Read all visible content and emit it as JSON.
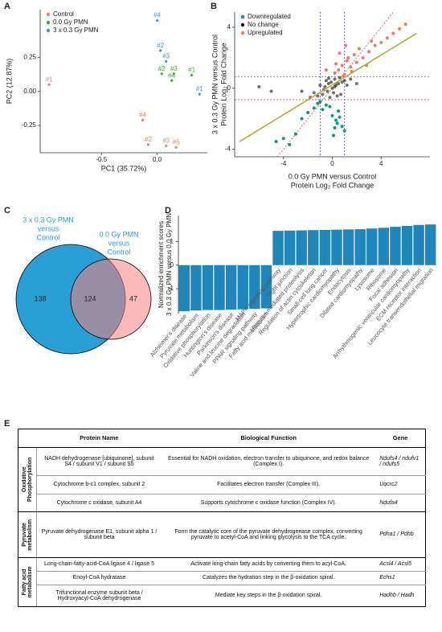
{
  "panel_labels": [
    "A",
    "B",
    "C",
    "D",
    "E"
  ],
  "chart_data": [
    {
      "type": "scatter",
      "x_label": "PC1 (35.72%)",
      "y_label": "PC2 (12.87%)",
      "xlim": [
        -1.05,
        0.45
      ],
      "ylim": [
        -0.45,
        0.6
      ],
      "xticks": [
        -0.5,
        {
          "value": 0,
          "label": "0.0"
        }
      ],
      "yticks": [
        0.25,
        {
          "value": 0,
          "label": "0.00"
        },
        -0.25
      ],
      "legend": "upper left",
      "series": [
        {
          "name": "Control",
          "color": "#f07b6f",
          "x": [
            -0.97,
            -0.13,
            -0.08,
            0.08,
            0.17
          ],
          "y": [
            0.05,
            -0.21,
            -0.39,
            -0.4,
            -0.41
          ],
          "labels": [
            "#1",
            "#4",
            "#2",
            "#3",
            "#5"
          ]
        },
        {
          "name": "0.0 Gy PMN",
          "color": "#2db52d",
          "x": [
            0.04,
            0.15,
            0.13,
            0.31
          ],
          "y": [
            0.13,
            0.13,
            0.08,
            0.12
          ],
          "labels": [
            "#2",
            "#3",
            "#4",
            "#1"
          ]
        },
        {
          "name": "3 x 0.3 Gy PMN",
          "color": "#4b8fe0",
          "x": [
            0.0,
            0.03,
            0.08,
            0.38
          ],
          "y": [
            0.52,
            0.3,
            0.22,
            -0.02
          ],
          "labels": [
            "#4",
            "#2",
            "#3",
            "#1"
          ]
        }
      ]
    },
    {
      "type": "scatter",
      "x_label": [
        "0.0 Gy PMN versus Control",
        "Protein Log₂ Fold Change"
      ],
      "y_label": [
        "3 x 0.3 Gy PMN versus Control",
        "Protein Log₂ Fold Change"
      ],
      "xlim": [
        -8,
        8
      ],
      "ylim": [
        -4.5,
        5
      ],
      "xticks": [
        -4,
        0,
        4
      ],
      "yticks": [
        4,
        0,
        -4
      ],
      "legend": "upper left",
      "vlines": [
        -1,
        1
      ],
      "vline_color": "#3b3bd6",
      "hlines": [
        -0.75,
        0.75
      ],
      "hline_color": "#e04545",
      "identity_line_color": "#e04545",
      "fit_line": {
        "x": [
          -7.6,
          6.9
        ],
        "y": [
          -3.5,
          3.6
        ],
        "color": "#b8a840"
      },
      "series": [
        {
          "name": "Downregulated",
          "color": "#12948a",
          "x": [
            -0.2,
            0,
            0.3,
            0.5,
            0.8,
            1,
            -0.5,
            -1,
            -1.5,
            -2,
            -2.5,
            -3,
            -4,
            -3.5,
            0.2,
            0.6,
            -0.8,
            -1.2,
            0.1,
            0.4,
            -4.6
          ],
          "y": [
            -1.2,
            -1.8,
            -2.1,
            -1.5,
            -2.5,
            -2.8,
            -1.1,
            -0.9,
            -1.3,
            -1.6,
            -2,
            -3,
            -3.3,
            -3.7,
            -2.6,
            -1.9,
            -1.4,
            -1,
            -3.1,
            -2.3,
            -3.5
          ]
        },
        {
          "name": "No change",
          "color": "#111111",
          "x": [
            -1.8,
            -1.5,
            -1.2,
            -1,
            -0.8,
            -0.6,
            -0.5,
            -0.4,
            -0.3,
            -0.2,
            -0.1,
            0,
            0.1,
            0.2,
            0.3,
            0.4,
            0.5,
            0.6,
            0.8,
            1,
            1.2,
            1.5,
            -0.7,
            0.7,
            -0.3,
            0.2,
            -2.5,
            2,
            -6,
            -5
          ],
          "y": [
            -0.6,
            -0.3,
            -0.5,
            0.2,
            -0.4,
            0.1,
            0.5,
            -0.2,
            0.3,
            -0.6,
            0.4,
            0,
            -0.3,
            0.6,
            0.2,
            -0.5,
            0.3,
            0.7,
            0.4,
            0.5,
            0.2,
            0.6,
            -0.1,
            -0.4,
            0.65,
            0.1,
            -0.2,
            0.3,
            0.1,
            -0.2
          ]
        },
        {
          "name": "Upregulated",
          "color": "#f07b5f",
          "x": [
            0.2,
            0.5,
            0.8,
            1,
            1.2,
            1.5,
            1.8,
            2,
            2.2,
            2.5,
            3,
            3.5,
            4,
            4.5,
            5,
            5.5,
            0.3,
            0.6,
            1.1,
            1.6,
            -0.5,
            2.8,
            3.2,
            6,
            0.9,
            1.3
          ],
          "y": [
            1,
            1.2,
            1.5,
            0.9,
            1.8,
            1.4,
            2.2,
            1.7,
            2.6,
            2,
            2.4,
            2.8,
            3,
            3.3,
            3.6,
            3.9,
            1.6,
            2.3,
            2.8,
            1.1,
            1.2,
            1.5,
            3.1,
            4.2,
            0.8,
            2
          ]
        }
      ]
    },
    {
      "type": "venn",
      "sets": [
        {
          "label_lines": [
            "3 x 0.3 Gy PMN",
            "versus",
            "Control"
          ],
          "color": "#2a9fd6"
        },
        {
          "label_lines": [
            "0.0 Gy PMN",
            "versus",
            "Control"
          ],
          "color": "#f4807e"
        }
      ],
      "only_first": 138,
      "both": 124,
      "only_second": 47
    },
    {
      "type": "bar",
      "y_label": [
        "Normalized enrichment scores",
        "3 x 0.3 Gy PMN versus 0.0 Gy PMN"
      ],
      "ylim": [
        -2.05,
        2.1
      ],
      "yticks": [
        1,
        0,
        -1
      ],
      "color": "#1f86bb",
      "categories": [
        "Alzheimer's disease",
        "Pyruvate metabolism",
        "Oxidative phosphorylation",
        "Huntington's disease",
        "Parkinson's disease",
        "Valine and leucine degradation",
        "PPAR signaling pathway",
        "Fatty acid metabolism",
        "MAPK signaling pathway",
        "Tight junction",
        "Ubiquitin-mediated proteolysis",
        "Regulation of actin cytoskeleton",
        "Small-cell lung cancer",
        "Hypertrophic cardiomyopathy",
        "Endocytosis",
        "Dilated cardiomyopathy",
        "Lysosome",
        "Ribosome",
        "Focal adhesion",
        "Arrhythmogenic ventricular cardiomyopathy",
        "ECM receptor interaction",
        "Leucocyte transendothelial migration"
      ],
      "values": [
        -1.95,
        -1.92,
        -1.9,
        -1.9,
        -1.88,
        -1.87,
        -1.85,
        -1.83,
        1.45,
        1.46,
        1.47,
        1.48,
        1.49,
        1.5,
        1.51,
        1.52,
        1.55,
        1.58,
        1.62,
        1.66,
        1.7,
        1.72
      ]
    }
  ],
  "table": {
    "headers": [
      "Protein Name",
      "Biological Function",
      "Gene"
    ],
    "groups": [
      {
        "label": "Oxidative Phosphorylation",
        "rows": [
          [
            "NADH dehydrogenase [ubiquinone], subunit S4 / subunit V1 / subunit S5",
            "Essential for NADH oxidation, electron transfer to ubiquinone, and redox balance (Complex I).",
            "Ndufs4 / ndufv1 / ndufs5"
          ],
          [
            "Cytochrome b-c1 complex, subunit 2",
            "Facilitates electron transfer (Complex III).",
            "Uqcrc2"
          ],
          [
            "Cytochrome c oxidase, subunit A4",
            "Supports cytochrome c oxidase function (Complex IV).",
            "Ndufa4"
          ]
        ]
      },
      {
        "label": "Pyruvate metabolism",
        "rows": [
          [
            "Pyruvate dehydrogenase E1, subunit alpha 1 / subunit beta",
            "Form the catalytic core of the pyruvate dehydrogenase complex, converting pyruvate to acetyl-CoA and linking glycolysis to the TCA cycle.",
            "Pdha1 / Pdhb"
          ]
        ]
      },
      {
        "label": "Fatty acid metabolism",
        "rows": [
          [
            "Long-chain-fatty-acid-CoA ligase 4 / ligase 5",
            "Activate long-chain fatty acids by converting them to acyl-CoA.",
            "Acsl4 / Acsl5"
          ],
          [
            "Enoyl-CoA hydratase",
            "Catalyzes the hydration step in the β-oxidation spiral.",
            "Echs1"
          ],
          [
            "Trifunctional enzyme subunit beta / Hydroxyacyl-CoA dehydrogenase",
            "Mediate key steps in the β-oxidation spiral.",
            "Hadhb / Hadh"
          ]
        ]
      }
    ]
  }
}
